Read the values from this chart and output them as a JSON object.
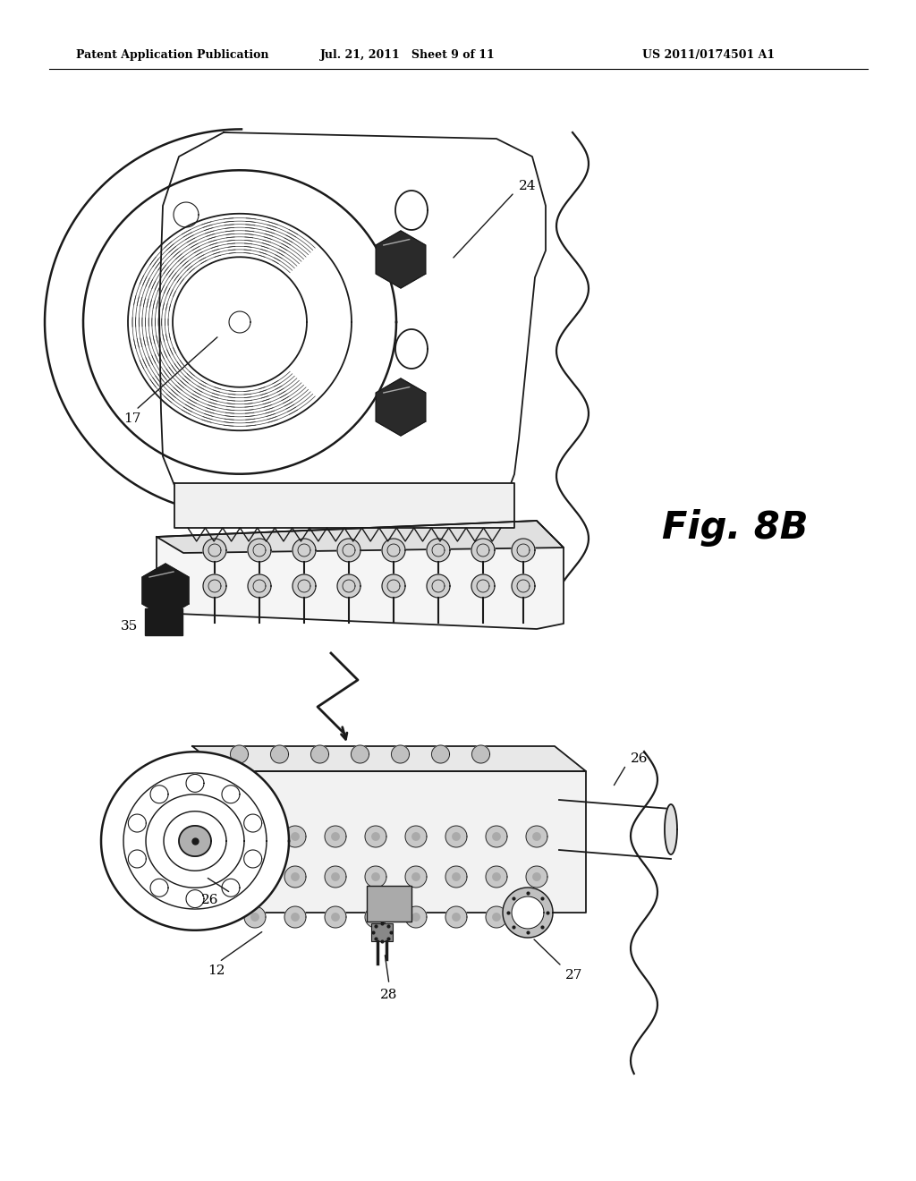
{
  "bg_color": "#ffffff",
  "header_left": "Patent Application Publication",
  "header_mid": "Jul. 21, 2011   Sheet 9 of 11",
  "header_right": "US 2011/0174501 A1",
  "fig_label": "Fig. 8B",
  "line_color": "#1a1a1a",
  "lw": 1.3
}
